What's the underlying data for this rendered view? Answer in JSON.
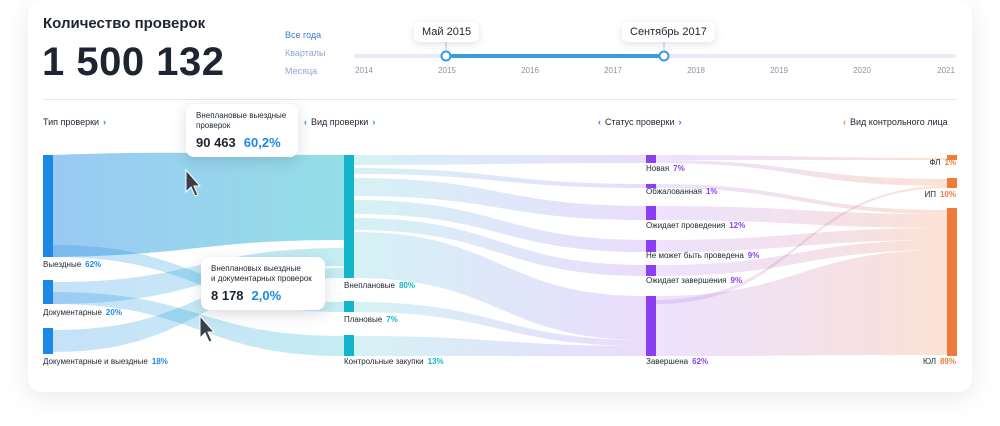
{
  "header": {
    "title": "Количество проверок",
    "total": "1 500 132"
  },
  "timeline": {
    "periods": [
      "Все года",
      "Кварталы",
      "Месяца"
    ],
    "start_label": "Май 2015",
    "end_label": "Сентябрь 2017",
    "years": [
      "2014",
      "2015",
      "2016",
      "2017",
      "2018",
      "2019",
      "2020",
      "2021"
    ],
    "range_start": 2015.0,
    "range_end": 2017.6
  },
  "columns": {
    "type": "Тип проверки",
    "kind": "Вид проверки",
    "status": "Статус проверки",
    "entity": "Вид контрольного лица"
  },
  "nodes": {
    "type": [
      {
        "label": "Выездные",
        "pct": "62%",
        "value": 62
      },
      {
        "label": "Документарные",
        "pct": "20%",
        "value": 20
      },
      {
        "label": "Документарные и выездные",
        "pct": "18%",
        "value": 18
      }
    ],
    "kind": [
      {
        "label": "Внеплановые",
        "pct": "80%",
        "value": 80
      },
      {
        "label": "Плановые",
        "pct": "7%",
        "value": 7
      },
      {
        "label": "Контрольные закупки",
        "pct": "13%",
        "value": 13
      }
    ],
    "status": [
      {
        "label": "Новая",
        "pct": "7%",
        "value": 7
      },
      {
        "label": "Обжалованная",
        "pct": "1%",
        "value": 1
      },
      {
        "label": "Ожидает проведения",
        "pct": "12%",
        "value": 12
      },
      {
        "label": "Не может быть проведена",
        "pct": "9%",
        "value": 9
      },
      {
        "label": "Ожидает завершения",
        "pct": "9%",
        "value": 9
      },
      {
        "label": "Завершена",
        "pct": "62%",
        "value": 62
      }
    ],
    "entity": [
      {
        "label": "ФЛ",
        "pct": "1%",
        "value": 1
      },
      {
        "label": "ИП",
        "pct": "10%",
        "value": 10
      },
      {
        "label": "ЮЛ",
        "pct": "89%",
        "value": 89
      }
    ]
  },
  "tooltips": [
    {
      "title": "Внеплановые выездные\nпроверок",
      "value": "90 463",
      "pct": "60,2%"
    },
    {
      "title": "Внеплановых выездные\nи документарных проверок",
      "value": "8 178",
      "pct": "2,0%"
    }
  ],
  "colors": {
    "type": "#1e88e5",
    "kind": "#12b5c9",
    "status": "#8a3ff0",
    "entity": "#f07a3a"
  }
}
